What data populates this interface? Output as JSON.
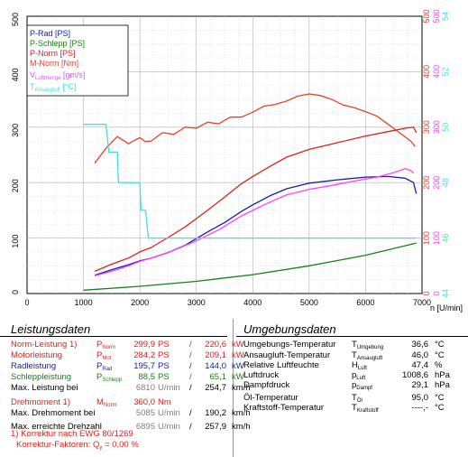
{
  "chart_data": {
    "type": "line",
    "xlabel": "n [U/min]",
    "x_ticks": [
      0,
      1000,
      2000,
      3000,
      4000,
      5000,
      6000,
      7000
    ],
    "xlim": [
      0,
      7000
    ],
    "left_axis": {
      "ticks": [
        0,
        100,
        200,
        300,
        400,
        500
      ],
      "ylim": [
        0,
        500
      ]
    },
    "right_axes": [
      {
        "ticks": [
          0,
          100,
          200,
          300,
          400,
          500
        ],
        "color": "#e8402a"
      },
      {
        "ticks": [
          0,
          100,
          200,
          300,
          400,
          500
        ],
        "color": "#ff40ff"
      },
      {
        "ticks": [
          44,
          46,
          48,
          50,
          52,
          54
        ],
        "color": "#40e0e0"
      }
    ],
    "grid": true,
    "legend_position": "top-left",
    "legend": [
      {
        "label": "P-Rad [PS]",
        "color": "#1a1aa8"
      },
      {
        "label": "P-Schlepp [PS]",
        "color": "#188018"
      },
      {
        "label": "P-Norm [PS]",
        "color": "#e0201a"
      },
      {
        "label": "M-Norm [Nm]",
        "color": "#e8402a"
      },
      {
        "label_main": "V",
        "label_sub": "Luftmenge",
        "label_unit": " [gm/s]",
        "color": "#ff40ff"
      },
      {
        "label_main": "T",
        "label_sub": "Ansaugluft",
        "label_unit": " [°C]",
        "color": "#40e0e0"
      }
    ],
    "series": [
      {
        "name": "P-Rad [PS]",
        "color": "#1a1aa8",
        "x": [
          1200,
          1500,
          1800,
          2000,
          2200,
          2500,
          2800,
          3000,
          3200,
          3500,
          3800,
          4000,
          4300,
          4600,
          5000,
          5500,
          6000,
          6400,
          6700,
          6850,
          6900
        ],
        "y": [
          33,
          43,
          52,
          59,
          64,
          74,
          87,
          99,
          111,
          128,
          148,
          160,
          176,
          189,
          199,
          205,
          210,
          211,
          208,
          200,
          180
        ]
      },
      {
        "name": "P-Schlepp [PS]",
        "color": "#188018",
        "x": [
          1000,
          2000,
          3000,
          4000,
          5000,
          6000,
          6900
        ],
        "y": [
          6,
          13,
          22,
          34,
          50,
          69,
          91
        ]
      },
      {
        "name": "P-Norm [PS]",
        "color": "#e0201a",
        "x": [
          1200,
          1500,
          1800,
          2000,
          2200,
          2500,
          2800,
          3000,
          3200,
          3500,
          3800,
          4000,
          4300,
          4600,
          5000,
          5500,
          6000,
          6400,
          6700,
          6850,
          6900
        ],
        "y": [
          40,
          53,
          64,
          75,
          83,
          101,
          120,
          135,
          150,
          174,
          198,
          211,
          229,
          246,
          260,
          272,
          284,
          292,
          298,
          300,
          290
        ]
      },
      {
        "name": "M-Norm [Nm]",
        "color": "#e8402a",
        "x": [
          1200,
          1400,
          1600,
          1800,
          1900,
          2000,
          2100,
          2200,
          2400,
          2600,
          2800,
          3000,
          3200,
          3400,
          3600,
          3800,
          4000,
          4200,
          4400,
          4600,
          4800,
          5000,
          5200,
          5400,
          5600,
          5800,
          6000,
          6200,
          6400,
          6600,
          6800,
          6880
        ],
        "y": [
          235,
          262,
          283,
          270,
          276,
          281,
          274,
          275,
          290,
          287,
          300,
          298,
          309,
          306,
          318,
          318,
          327,
          338,
          341,
          347,
          356,
          360,
          357,
          350,
          340,
          335,
          328,
          320,
          305,
          290,
          275,
          265
        ]
      },
      {
        "name_main": "V",
        "name_sub": "Luftmenge",
        "color": "#ff40ff",
        "x": [
          1200,
          1500,
          1800,
          2000,
          2300,
          2600,
          3000,
          3400,
          3800,
          4200,
          4600,
          5000,
          5400,
          5800,
          6200,
          6500,
          6700,
          6800,
          6850
        ],
        "y": [
          32,
          40,
          50,
          58,
          67,
          78,
          95,
          115,
          140,
          160,
          178,
          188,
          195,
          203,
          210,
          218,
          225,
          222,
          217
        ]
      },
      {
        "name_main": "T",
        "name_sub": "Ansaugluft",
        "color": "#40e0e0",
        "x": [
          1000,
          1400,
          1450,
          1600,
          1620,
          1700,
          2000,
          2020,
          2100,
          2150,
          6900
        ],
        "y": [
          305,
          305,
          255,
          255,
          200,
          200,
          200,
          150,
          150,
          100,
          100
        ]
      }
    ]
  },
  "panel": {
    "left_title": "Leistungsdaten",
    "right_title": "Umgebungsdaten",
    "left_rows": [
      {
        "label": "Norm-Leistung 1)",
        "sym_main": "P",
        "sym_sub": "Norm",
        "v1": "299,9",
        "u1": "PS",
        "sep": "/",
        "v2": "220,6",
        "u2": "kW",
        "style": "red"
      },
      {
        "label": "Motorleistung",
        "sym_main": "P",
        "sym_sub": "Mot",
        "v1": "284,2",
        "u1": "PS",
        "sep": "/",
        "v2": "209,1",
        "u2": "kW",
        "style": "red"
      },
      {
        "label": "Radleistung",
        "sym_main": "P",
        "sym_sub": "Rad",
        "v1": "195,7",
        "u1": "PS",
        "sep": "/",
        "v2": "144,0",
        "u2": "kW",
        "style": "blue"
      },
      {
        "label": "Schleppleistung",
        "sym_main": "P",
        "sym_sub": "Schlepp",
        "v1": "88,5",
        "u1": "PS",
        "sep": "/",
        "v2": "65,1",
        "u2": "kW",
        "style": "green"
      },
      {
        "label": "Max. Leistung bei",
        "sym_main": "",
        "sym_sub": "",
        "v1": "6810",
        "u1": "U/min",
        "sep": "/",
        "v2": "254,7",
        "u2": "km/h",
        "style": "grey1"
      },
      {
        "label": "Drehmoment 1)",
        "sym_main": "M",
        "sym_sub": "Norm",
        "v1": "360,0",
        "u1": "Nm",
        "sep": "",
        "v2": "",
        "u2": "",
        "style": "red"
      },
      {
        "label": "Max. Drehmoment bei",
        "sym_main": "",
        "sym_sub": "",
        "v1": "5085",
        "u1": "U/min",
        "sep": "/",
        "v2": "190,2",
        "u2": "km/h",
        "style": "grey1"
      },
      {
        "label": "Max. erreichte Drehzahl",
        "sym_main": "",
        "sym_sub": "",
        "v1": "6895",
        "u1": "U/min",
        "sep": "/",
        "v2": "257,9",
        "u2": "km/h",
        "style": "grey1"
      }
    ],
    "footnote_1": "1) Korrektur nach EWG 80/1269",
    "footnote_2_prefix": "Korrektur-Faktoren:  Q",
    "footnote_2_sub": "y",
    "footnote_2_suffix": " =   0,00 %",
    "right_rows": [
      {
        "label": "Umgebungs-Temperatur",
        "sym_main": "T",
        "sym_sub": "Umgebung",
        "value": "36,6",
        "unit": "°C"
      },
      {
        "label": "Ansaugluft-Temperatur",
        "sym_main": "T",
        "sym_sub": "Ansaugluft",
        "value": "46,0",
        "unit": "°C"
      },
      {
        "label": "Relative Luftfeuchte",
        "sym_main": "H",
        "sym_sub": "Luft",
        "value": "47,4",
        "unit": "%"
      },
      {
        "label": "Luftdruck",
        "sym_main": "p",
        "sym_sub": "Luft",
        "value": "1008,6",
        "unit": "hPa"
      },
      {
        "label": "Dampfdruck",
        "sym_main": "p",
        "sym_sub": "Dampf",
        "value": "29,1",
        "unit": "hPa"
      },
      {
        "label": "Öl-Temperatur",
        "sym_main": "T",
        "sym_sub": "Öl",
        "value": "95,0",
        "unit": "°C"
      },
      {
        "label": "Kraftstoff-Temperatur",
        "sym_main": "T",
        "sym_sub": "Kraftstoff",
        "value": "----,-",
        "unit": "°C"
      }
    ]
  }
}
